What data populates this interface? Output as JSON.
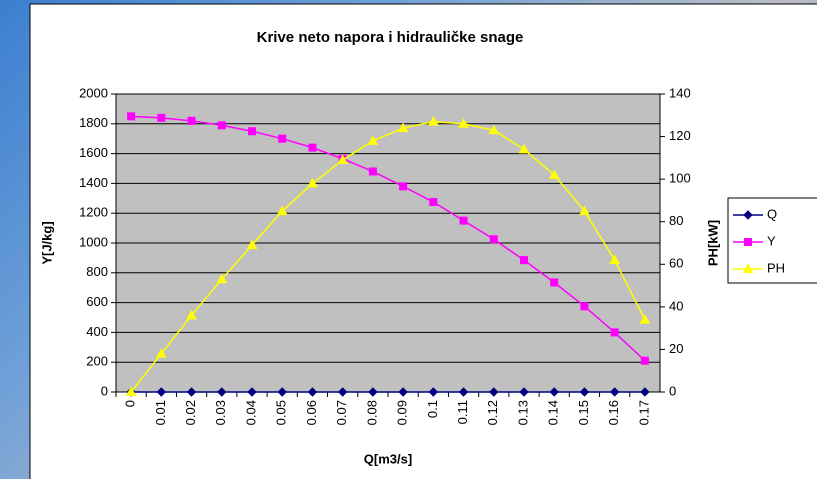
{
  "chart_data": {
    "type": "line",
    "title": "Krive neto napora i hidrauličke snage",
    "x_label": "Q[m3/s]",
    "y_label": "Y[J/kg]",
    "y2_label": "PH[kW]",
    "categories": [
      "0",
      "0.01",
      "0.02",
      "0.03",
      "0.04",
      "0.05",
      "0.06",
      "0.07",
      "0.08",
      "0.09",
      "0.1",
      "0.11",
      "0.12",
      "0.13",
      "0.14",
      "0.15",
      "0.16",
      "0.17"
    ],
    "series": [
      {
        "name": "Q",
        "color": "#000080",
        "marker": "diamond",
        "values": [
          0,
          0.01,
          0.02,
          0.03,
          0.04,
          0.05,
          0.06,
          0.07,
          0.08,
          0.09,
          0.1,
          0.11,
          0.12,
          0.13,
          0.14,
          0.15,
          0.16,
          0.17
        ]
      },
      {
        "name": "Y",
        "color": "#ff00ff",
        "marker": "square",
        "values": [
          1850,
          1840,
          1820,
          1790,
          1750,
          1700,
          1640,
          1565,
          1480,
          1380,
          1275,
          1150,
          1025,
          885,
          735,
          575,
          400,
          210
        ]
      },
      {
        "name": "PH",
        "color": "#ffff00",
        "marker": "triangle",
        "axis": "y2",
        "values": [
          0,
          18,
          36,
          53,
          69,
          85,
          98,
          109,
          118,
          124,
          127,
          126,
          123,
          114,
          102,
          85,
          62,
          34
        ]
      }
    ],
    "ylim": [
      0,
      2000
    ],
    "yticks": [
      0,
      200,
      400,
      600,
      800,
      1000,
      1200,
      1400,
      1600,
      1800,
      2000
    ],
    "y2lim": [
      0,
      140
    ],
    "y2ticks": [
      0,
      20,
      40,
      60,
      80,
      100,
      120,
      140
    ],
    "grid": true,
    "legend": "right"
  }
}
